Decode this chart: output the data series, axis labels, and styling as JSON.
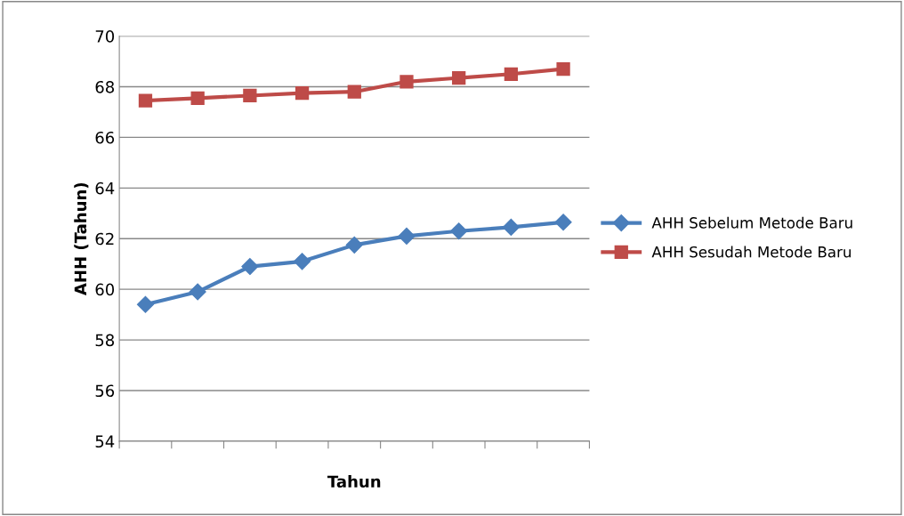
{
  "chart_data": {
    "type": "line",
    "xlabel": "Tahun",
    "ylabel": "AHH (Tahun)",
    "categories": [
      null,
      null,
      null,
      null,
      null,
      null,
      null,
      null,
      null
    ],
    "series": [
      {
        "name": "AHH Sebelum Metode Baru",
        "color": "#4a7ebb",
        "marker": "diamond",
        "values": [
          59.4,
          59.9,
          60.9,
          61.1,
          61.75,
          62.1,
          62.3,
          62.45,
          62.65
        ]
      },
      {
        "name": "AHH Sesudah Metode Baru",
        "color": "#be4b48",
        "marker": "square",
        "values": [
          67.45,
          67.55,
          67.65,
          67.75,
          67.8,
          68.2,
          68.35,
          68.5,
          68.7
        ]
      }
    ],
    "ylim": [
      54,
      70
    ],
    "yticks": [
      54,
      56,
      58,
      60,
      62,
      64,
      66,
      68,
      70
    ],
    "grid": "y",
    "legend": "right",
    "tick_labels": "y"
  }
}
